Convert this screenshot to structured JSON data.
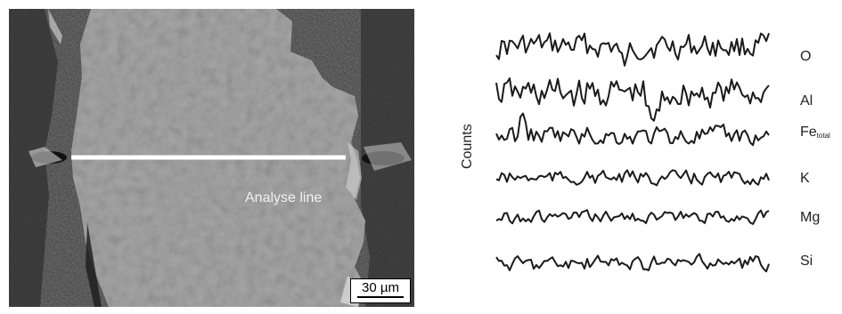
{
  "micrograph": {
    "annotation": "Analyse line",
    "scale_bar_label": "30 µm"
  },
  "chart": {
    "ylabel": "Counts",
    "profiles": [
      {
        "element": "O",
        "sub": ""
      },
      {
        "element": "Al",
        "sub": ""
      },
      {
        "element": "Fe",
        "sub": "total"
      },
      {
        "element": "K",
        "sub": ""
      },
      {
        "element": "Mg",
        "sub": ""
      },
      {
        "element": "Si",
        "sub": ""
      }
    ]
  },
  "colors": {
    "profile_line": "#1a1a1a",
    "background_dark": "#3a3a3a",
    "grain": "#a4a4a4",
    "analyse_line": "#ffffff"
  }
}
